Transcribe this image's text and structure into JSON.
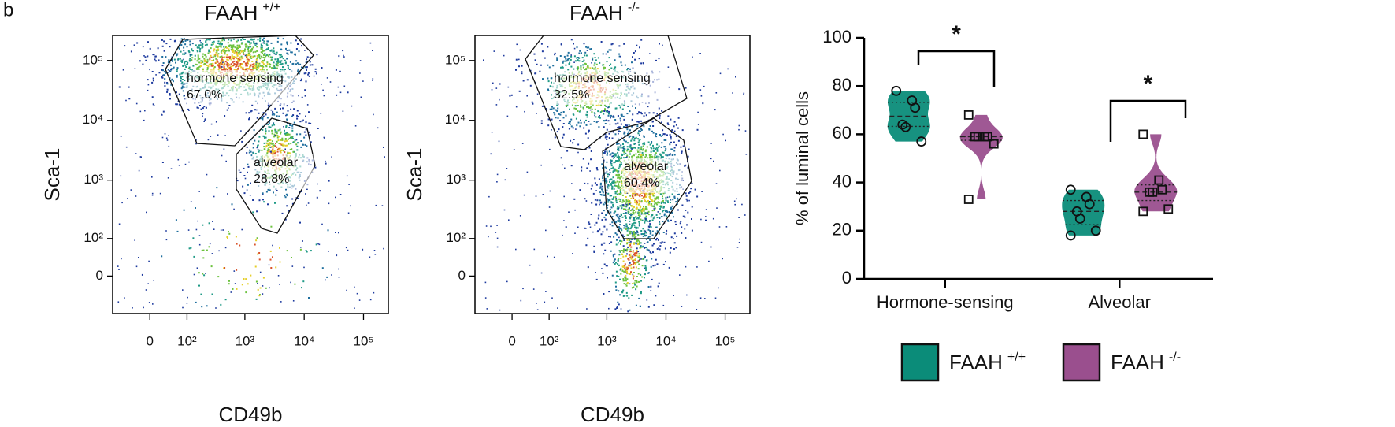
{
  "chart_data": [
    {
      "type": "flow",
      "panel_label": "b",
      "title": "FAAH",
      "title_superscript": "+/+",
      "x_label": "CD49b",
      "y_label": "Sca-1",
      "xscale": "biexponential",
      "yscale": "biexponential",
      "xlim": [
        -100,
        262144
      ],
      "ylim": [
        -100,
        262144
      ],
      "xticks": [
        0,
        {
          "value": 100,
          "label": "10²"
        },
        {
          "value": 1000,
          "label": "10³"
        },
        {
          "value": 10000,
          "label": "10⁴"
        },
        {
          "value": 100000,
          "label": "10⁵"
        }
      ],
      "yticks": [
        0,
        {
          "value": 100,
          "label": "10²"
        },
        {
          "value": 1000,
          "label": "10³"
        },
        {
          "value": 10000,
          "label": "10⁴"
        },
        {
          "value": 100000,
          "label": "10⁵"
        }
      ],
      "gates": {
        "names": [
          "hormone sensing",
          "alveolar"
        ],
        "values": [
          67.0,
          28.8
        ],
        "value_labels": [
          "67.0%",
          "28.8%"
        ]
      }
    },
    {
      "type": "flow",
      "title": "FAAH",
      "title_superscript": "-/-",
      "x_label": "CD49b",
      "y_label": "Sca-1",
      "xscale": "biexponential",
      "yscale": "biexponential",
      "xlim": [
        -100,
        262144
      ],
      "ylim": [
        -100,
        262144
      ],
      "xticks": [
        0,
        {
          "value": 100,
          "label": "10²"
        },
        {
          "value": 1000,
          "label": "10³"
        },
        {
          "value": 10000,
          "label": "10⁴"
        },
        {
          "value": 100000,
          "label": "10⁵"
        }
      ],
      "yticks": [
        0,
        {
          "value": 100,
          "label": "10²"
        },
        {
          "value": 1000,
          "label": "10³"
        },
        {
          "value": 10000,
          "label": "10⁴"
        },
        {
          "value": 100000,
          "label": "10⁵"
        }
      ],
      "gates": {
        "names": [
          "hormone sensing",
          "alveolar"
        ],
        "values": [
          32.5,
          60.4
        ],
        "value_labels": [
          "32.5%",
          "60.4%"
        ]
      }
    },
    {
      "type": "violin",
      "y_label": "% of luminal cells",
      "categories": [
        "Hormone-sensing",
        "Alveolar"
      ],
      "ylim": [
        0,
        100
      ],
      "yticks": [
        0,
        20,
        40,
        60,
        80,
        100
      ],
      "series": [
        {
          "name": "FAAH",
          "name_superscript": "+/+",
          "color": "#0b8c79",
          "marker": "circle",
          "values": [
            [
              78,
              74,
              71,
              64,
              63,
              57
            ],
            [
              37,
              34,
              31,
              28,
              25,
              20,
              18
            ]
          ]
        },
        {
          "name": "FAAH",
          "name_superscript": "-/-",
          "color": "#9a4f8e",
          "marker": "square",
          "values": [
            [
              68,
              59,
              59,
              59,
              59,
              56,
              33
            ],
            [
              60,
              41,
              37,
              36,
              36,
              29,
              28
            ]
          ]
        }
      ],
      "annotations": [
        "*",
        "*"
      ],
      "legend": "bottom"
    }
  ]
}
